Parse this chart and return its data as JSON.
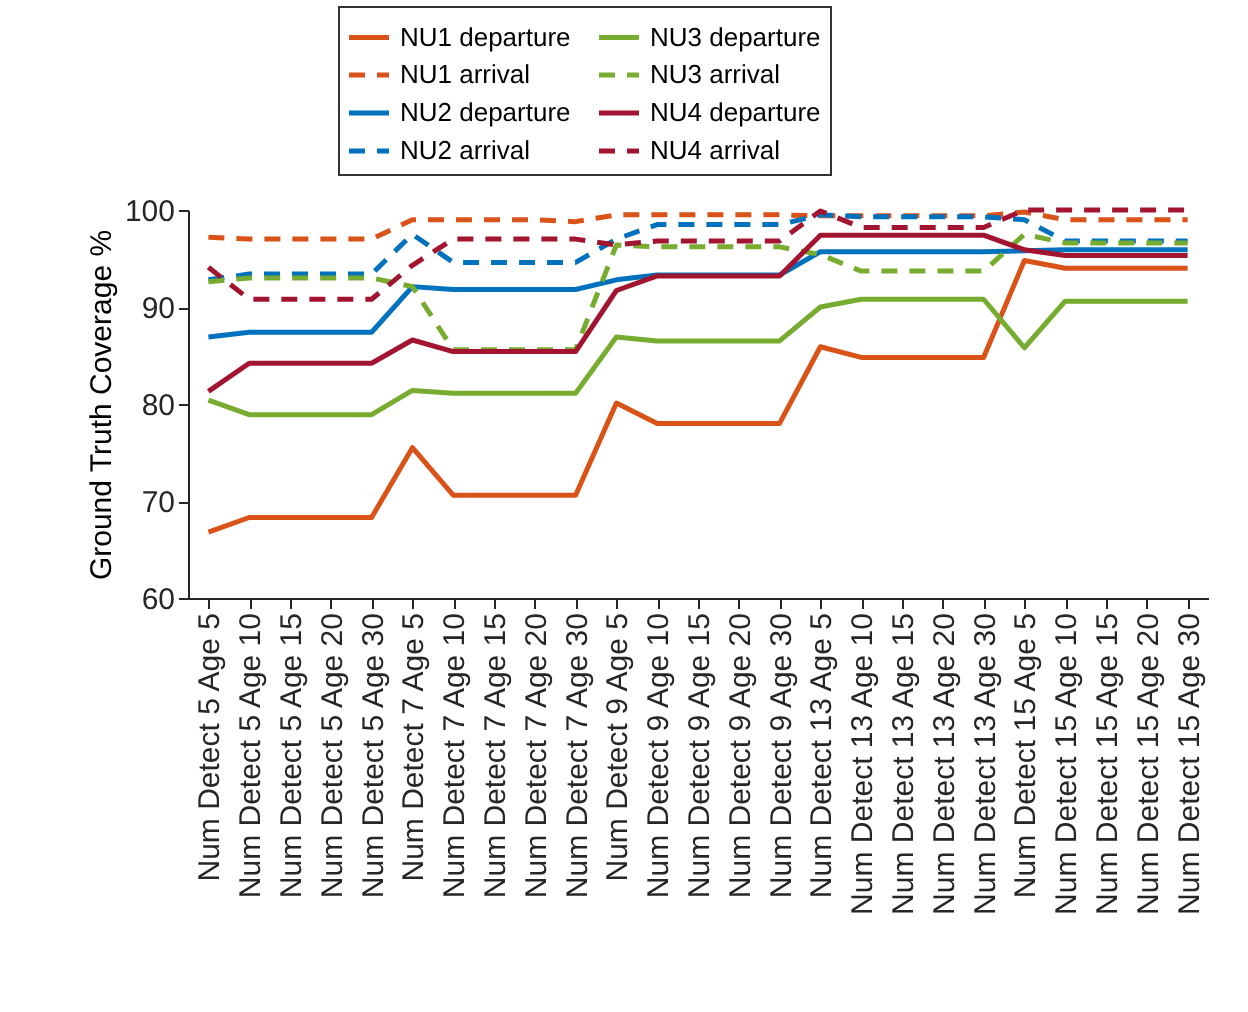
{
  "chart_data": {
    "type": "line",
    "ylabel": "Ground Truth Coverage %",
    "categories": [
      "Num Detect 5 Age 5",
      "Num Detect 5 Age 10",
      "Num Detect 5 Age 15",
      "Num Detect 5 Age 20",
      "Num Detect 5 Age 30",
      "Num Detect 7 Age 5",
      "Num Detect 7 Age 10",
      "Num Detect 7 Age 15",
      "Num Detect 7 Age 20",
      "Num Detect 7 Age 30",
      "Num Detect 9 Age 5",
      "Num Detect 9 Age 10",
      "Num Detect 9 Age 15",
      "Num Detect 9 Age 20",
      "Num Detect 9 Age 30",
      "Num Detect 13 Age 5",
      "Num Detect 13 Age 10",
      "Num Detect 13 Age 15",
      "Num Detect 13 Age 20",
      "Num Detect 13 Age 30",
      "Num Detect 15 Age 5",
      "Num Detect 15 Age 10",
      "Num Detect 15 Age 15",
      "Num Detect 15 Age 20",
      "Num Detect 15 Age 30"
    ],
    "series": [
      {
        "name": "NU1 departure",
        "color": "#d95319",
        "line_style": "solid",
        "values": [
          66.8,
          68.3,
          68.3,
          68.3,
          68.3,
          75.5,
          70.6,
          70.6,
          70.6,
          70.6,
          80.1,
          78,
          78,
          78,
          78,
          85.9,
          84.8,
          84.8,
          84.8,
          84.8,
          94.8,
          94,
          94,
          94,
          94
        ]
      },
      {
        "name": "NU1 arrival",
        "color": "#d95319",
        "line_style": "dashed",
        "values": [
          97.2,
          97,
          97,
          97,
          97,
          99,
          99,
          99,
          99,
          98.8,
          99.5,
          99.5,
          99.5,
          99.5,
          99.5,
          99.4,
          99.4,
          99.4,
          99.4,
          99.4,
          99.8,
          99,
          99,
          99,
          99
        ]
      },
      {
        "name": "NU2 departure",
        "color": "#0072bd",
        "line_style": "solid",
        "values": [
          86.9,
          87.4,
          87.4,
          87.4,
          87.4,
          92.1,
          91.8,
          91.8,
          91.8,
          91.8,
          92.8,
          93.3,
          93.3,
          93.3,
          93.3,
          95.7,
          95.7,
          95.7,
          95.7,
          95.7,
          95.8,
          95.9,
          95.9,
          95.9,
          95.9
        ]
      },
      {
        "name": "NU2 arrival",
        "color": "#0072bd",
        "line_style": "dashed",
        "values": [
          92.8,
          93.4,
          93.4,
          93.4,
          93.4,
          97.5,
          94.6,
          94.6,
          94.6,
          94.6,
          97,
          98.5,
          98.5,
          98.5,
          98.5,
          99.5,
          99.3,
          99.3,
          99.3,
          99.3,
          99,
          96.8,
          96.8,
          96.8,
          96.8
        ]
      },
      {
        "name": "NU3 departure",
        "color": "#77ac30",
        "line_style": "solid",
        "values": [
          80.4,
          78.9,
          78.9,
          78.9,
          78.9,
          81.4,
          81.1,
          81.1,
          81.1,
          81.1,
          86.9,
          86.5,
          86.5,
          86.5,
          86.5,
          90,
          90.8,
          90.8,
          90.8,
          90.8,
          85.8,
          90.6,
          90.6,
          90.6,
          90.6
        ]
      },
      {
        "name": "NU3 arrival",
        "color": "#77ac30",
        "line_style": "dashed",
        "values": [
          92.6,
          93,
          93,
          93,
          93,
          92.1,
          85.6,
          85.6,
          85.6,
          85.6,
          96.4,
          96.2,
          96.2,
          96.2,
          96.2,
          95.4,
          93.7,
          93.7,
          93.7,
          93.7,
          97.5,
          96.6,
          96.6,
          96.6,
          96.6
        ]
      },
      {
        "name": "NU4 departure",
        "color": "#a2142f",
        "line_style": "solid",
        "values": [
          81.3,
          84.2,
          84.2,
          84.2,
          84.2,
          86.6,
          85.4,
          85.4,
          85.4,
          85.4,
          91.7,
          93.2,
          93.2,
          93.2,
          93.2,
          97.4,
          97.4,
          97.4,
          97.4,
          97.4,
          95.9,
          95.3,
          95.3,
          95.3,
          95.3
        ]
      },
      {
        "name": "NU4 arrival",
        "color": "#a2142f",
        "line_style": "dashed",
        "values": [
          94.1,
          90.8,
          90.8,
          90.8,
          90.8,
          94.3,
          97,
          97,
          97,
          97,
          96.4,
          96.8,
          96.8,
          96.8,
          96.8,
          99.9,
          98.2,
          98.2,
          98.2,
          98.2,
          100,
          100,
          100,
          100,
          100
        ]
      }
    ],
    "ylim": [
      60,
      100
    ],
    "yticks": [
      60,
      70,
      80,
      90,
      100
    ],
    "grid": false,
    "legend": "top"
  }
}
